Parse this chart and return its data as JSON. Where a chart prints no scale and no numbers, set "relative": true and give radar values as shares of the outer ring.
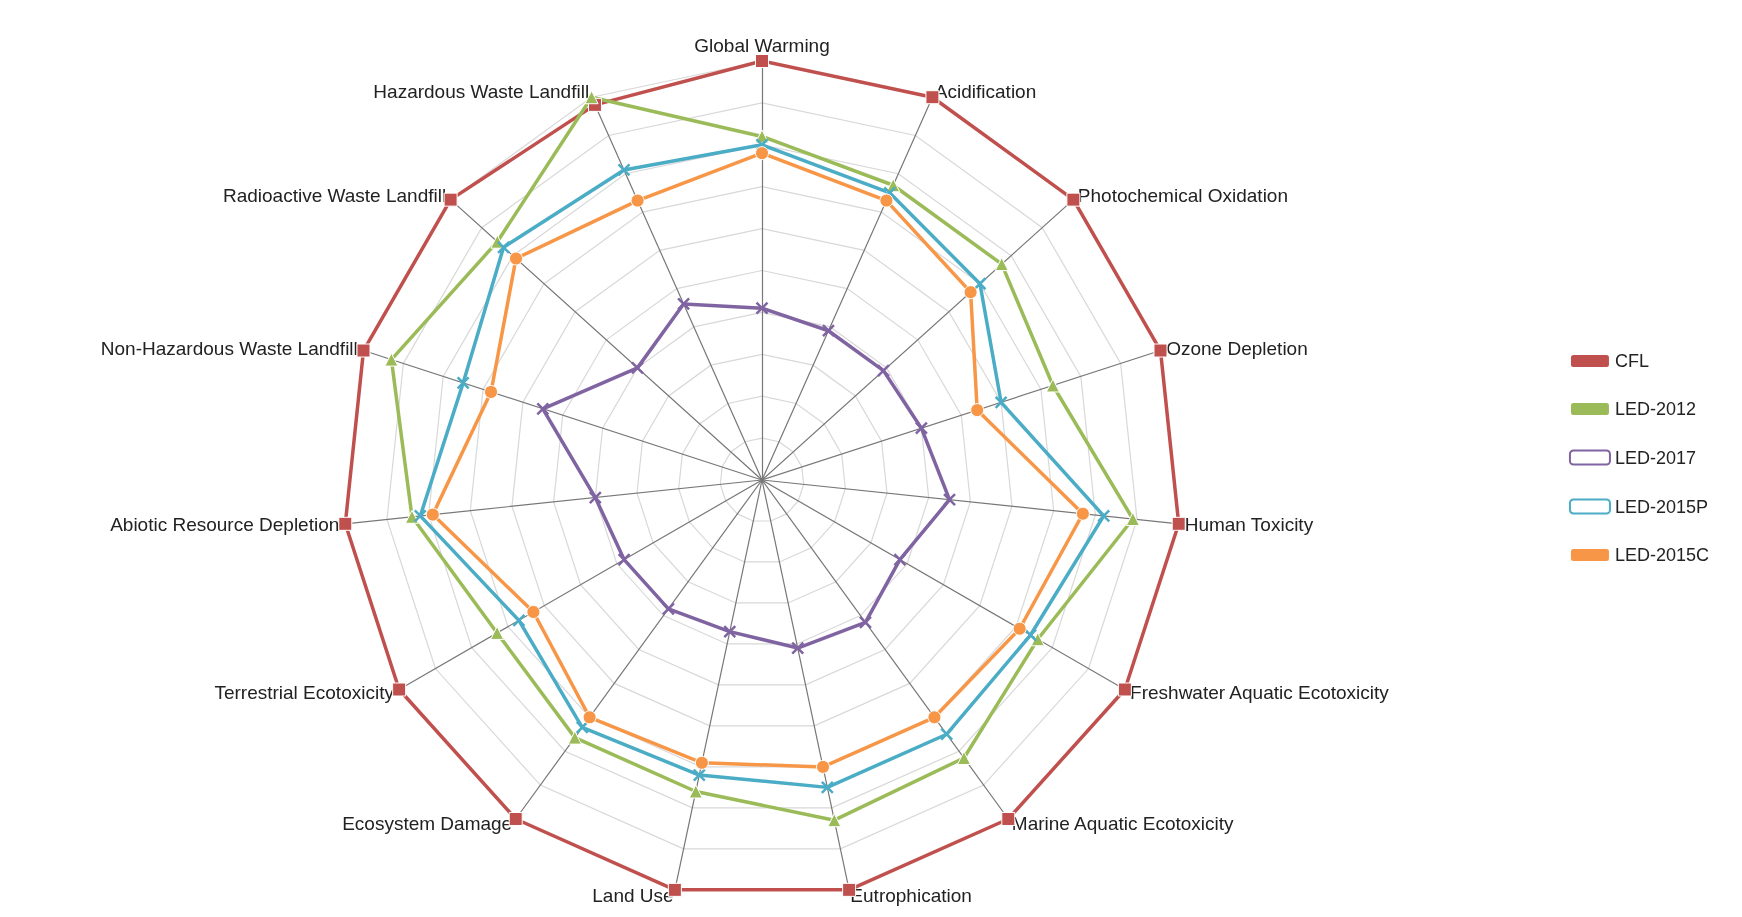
{
  "chart_data": {
    "type": "radar",
    "relative": true,
    "grid": true,
    "legend": "right",
    "line_style": "solid",
    "categories": [
      "Global Warming",
      "Acidification",
      "Photochemical Oxidation",
      "Ozone Depletion",
      "Human Toxicity",
      "Freshwater Aquatic Ecotoxicity",
      "Marine Aquatic Ecotoxicity",
      "Eutrophication",
      "Land Use",
      "Ecosystem Damage",
      "Terrestrial Ecotoxicity",
      "Abiotic Resource Depletion",
      "Non-Hazardous Waste Landfill",
      "Radioactive Waste Landfill",
      "Hazardous Waste Landfill"
    ],
    "series": [
      {
        "name": "CFL",
        "color": "#c0504d",
        "marker": "square",
        "values": [
          1,
          1,
          1,
          1,
          1,
          1,
          1,
          1,
          1,
          1,
          1,
          1,
          1,
          1,
          0.98
        ]
      },
      {
        "name": "LED-2012",
        "color": "#9bbb59",
        "marker": "triangle",
        "values": [
          0.82,
          0.77,
          0.77,
          0.73,
          0.89,
          0.76,
          0.82,
          0.83,
          0.76,
          0.76,
          0.73,
          0.84,
          0.93,
          0.85,
          1
        ]
      },
      {
        "name": "LED-2017",
        "color": "#8064a2",
        "marker": "cross",
        "values": [
          0.41,
          0.39,
          0.39,
          0.4,
          0.45,
          0.38,
          0.42,
          0.41,
          0.37,
          0.38,
          0.38,
          0.4,
          0.55,
          0.4,
          0.46
        ]
      },
      {
        "name": "LED-2015P",
        "color": "#4bacc6",
        "marker": "cross",
        "values": [
          0.8,
          0.75,
          0.7,
          0.6,
          0.82,
          0.74,
          0.75,
          0.75,
          0.72,
          0.73,
          0.67,
          0.82,
          0.75,
          0.83,
          0.81
        ]
      },
      {
        "name": "LED-2015C",
        "color": "#f79646",
        "marker": "circle",
        "values": [
          0.78,
          0.73,
          0.67,
          0.54,
          0.77,
          0.71,
          0.7,
          0.7,
          0.69,
          0.7,
          0.63,
          0.79,
          0.68,
          0.79,
          0.73
        ]
      }
    ]
  }
}
